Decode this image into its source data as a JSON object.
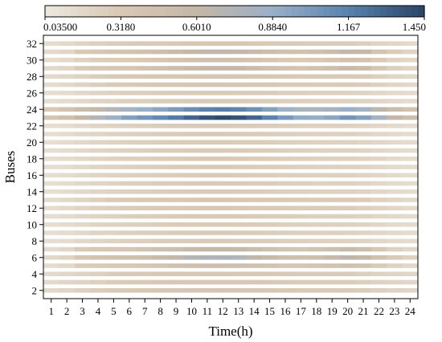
{
  "chart_data": {
    "type": "heatmap",
    "xlabel": "Time(h)",
    "ylabel": "Buses",
    "x": [
      1,
      2,
      3,
      4,
      5,
      6,
      7,
      8,
      9,
      10,
      11,
      12,
      13,
      14,
      15,
      16,
      17,
      18,
      19,
      20,
      21,
      22,
      23,
      24
    ],
    "y_ticks": [
      2,
      4,
      6,
      8,
      10,
      12,
      14,
      16,
      18,
      20,
      22,
      24,
      26,
      28,
      30,
      32
    ],
    "y_range": [
      1,
      33
    ],
    "rows": [
      {
        "bus": 2,
        "values": [
          0.17,
          0.2,
          0.24,
          0.27,
          0.3,
          0.32,
          0.33,
          0.34,
          0.35,
          0.36,
          0.36,
          0.37,
          0.36,
          0.35,
          0.34,
          0.32,
          0.31,
          0.3,
          0.3,
          0.3,
          0.28,
          0.25,
          0.22,
          0.2
        ]
      },
      {
        "bus": 3,
        "values": [
          0.16,
          0.19,
          0.22,
          0.25,
          0.28,
          0.3,
          0.31,
          0.32,
          0.33,
          0.34,
          0.34,
          0.34,
          0.34,
          0.33,
          0.32,
          0.3,
          0.29,
          0.28,
          0.28,
          0.28,
          0.26,
          0.23,
          0.21,
          0.19
        ]
      },
      {
        "bus": 4,
        "values": [
          0.16,
          0.19,
          0.22,
          0.25,
          0.28,
          0.3,
          0.31,
          0.32,
          0.33,
          0.34,
          0.35,
          0.35,
          0.34,
          0.33,
          0.32,
          0.3,
          0.29,
          0.28,
          0.28,
          0.28,
          0.26,
          0.23,
          0.21,
          0.19
        ]
      },
      {
        "bus": 5,
        "values": [
          0.14,
          0.18,
          0.28,
          0.3,
          0.32,
          0.33,
          0.35,
          0.38,
          0.42,
          0.46,
          0.48,
          0.48,
          0.46,
          0.42,
          0.4,
          0.36,
          0.36,
          0.38,
          0.4,
          0.44,
          0.4,
          0.3,
          0.22,
          0.18
        ]
      },
      {
        "bus": 6,
        "values": [
          0.18,
          0.22,
          0.36,
          0.4,
          0.42,
          0.44,
          0.48,
          0.55,
          0.62,
          0.7,
          0.74,
          0.75,
          0.72,
          0.64,
          0.56,
          0.48,
          0.46,
          0.5,
          0.56,
          0.66,
          0.6,
          0.42,
          0.3,
          0.24
        ]
      },
      {
        "bus": 7,
        "values": [
          0.15,
          0.19,
          0.3,
          0.33,
          0.35,
          0.37,
          0.4,
          0.45,
          0.5,
          0.56,
          0.6,
          0.6,
          0.58,
          0.52,
          0.46,
          0.4,
          0.38,
          0.42,
          0.46,
          0.54,
          0.48,
          0.34,
          0.24,
          0.19
        ]
      },
      {
        "bus": 8,
        "values": [
          0.12,
          0.14,
          0.18,
          0.21,
          0.23,
          0.25,
          0.26,
          0.27,
          0.28,
          0.29,
          0.3,
          0.3,
          0.29,
          0.28,
          0.27,
          0.26,
          0.25,
          0.24,
          0.24,
          0.24,
          0.22,
          0.19,
          0.16,
          0.14
        ]
      },
      {
        "bus": 9,
        "values": [
          0.12,
          0.14,
          0.18,
          0.21,
          0.23,
          0.25,
          0.26,
          0.27,
          0.28,
          0.29,
          0.3,
          0.3,
          0.29,
          0.28,
          0.27,
          0.26,
          0.25,
          0.24,
          0.24,
          0.24,
          0.22,
          0.19,
          0.16,
          0.14
        ]
      },
      {
        "bus": 10,
        "values": [
          0.12,
          0.14,
          0.18,
          0.21,
          0.23,
          0.25,
          0.26,
          0.27,
          0.28,
          0.29,
          0.3,
          0.3,
          0.29,
          0.28,
          0.27,
          0.26,
          0.25,
          0.24,
          0.24,
          0.24,
          0.22,
          0.19,
          0.16,
          0.14
        ]
      },
      {
        "bus": 11,
        "values": [
          0.13,
          0.15,
          0.19,
          0.22,
          0.24,
          0.26,
          0.27,
          0.28,
          0.29,
          0.3,
          0.31,
          0.31,
          0.3,
          0.29,
          0.28,
          0.27,
          0.26,
          0.25,
          0.25,
          0.25,
          0.23,
          0.2,
          0.17,
          0.15
        ]
      },
      {
        "bus": 12,
        "values": [
          0.14,
          0.17,
          0.21,
          0.24,
          0.26,
          0.28,
          0.29,
          0.3,
          0.31,
          0.32,
          0.33,
          0.33,
          0.32,
          0.31,
          0.3,
          0.29,
          0.28,
          0.27,
          0.27,
          0.27,
          0.25,
          0.22,
          0.19,
          0.16
        ]
      },
      {
        "bus": 13,
        "values": [
          0.14,
          0.17,
          0.22,
          0.26,
          0.29,
          0.31,
          0.32,
          0.33,
          0.34,
          0.35,
          0.36,
          0.36,
          0.35,
          0.34,
          0.33,
          0.31,
          0.3,
          0.29,
          0.29,
          0.3,
          0.28,
          0.24,
          0.2,
          0.17
        ]
      },
      {
        "bus": 14,
        "values": [
          0.12,
          0.14,
          0.18,
          0.21,
          0.23,
          0.25,
          0.26,
          0.27,
          0.28,
          0.29,
          0.3,
          0.3,
          0.29,
          0.28,
          0.27,
          0.26,
          0.25,
          0.24,
          0.24,
          0.24,
          0.22,
          0.19,
          0.16,
          0.14
        ]
      },
      {
        "bus": 15,
        "values": [
          0.12,
          0.14,
          0.18,
          0.21,
          0.23,
          0.25,
          0.26,
          0.27,
          0.28,
          0.29,
          0.3,
          0.3,
          0.29,
          0.28,
          0.27,
          0.26,
          0.25,
          0.24,
          0.24,
          0.24,
          0.22,
          0.19,
          0.16,
          0.14
        ]
      },
      {
        "bus": 16,
        "values": [
          0.12,
          0.14,
          0.18,
          0.21,
          0.23,
          0.25,
          0.26,
          0.27,
          0.28,
          0.29,
          0.3,
          0.3,
          0.29,
          0.28,
          0.27,
          0.26,
          0.25,
          0.24,
          0.24,
          0.24,
          0.22,
          0.19,
          0.16,
          0.14
        ]
      },
      {
        "bus": 17,
        "values": [
          0.12,
          0.14,
          0.18,
          0.21,
          0.23,
          0.25,
          0.26,
          0.27,
          0.28,
          0.29,
          0.3,
          0.3,
          0.29,
          0.28,
          0.27,
          0.26,
          0.25,
          0.24,
          0.24,
          0.24,
          0.22,
          0.19,
          0.16,
          0.14
        ]
      },
      {
        "bus": 18,
        "values": [
          0.12,
          0.14,
          0.18,
          0.21,
          0.23,
          0.25,
          0.26,
          0.27,
          0.28,
          0.29,
          0.3,
          0.3,
          0.29,
          0.28,
          0.27,
          0.26,
          0.25,
          0.24,
          0.24,
          0.24,
          0.22,
          0.19,
          0.16,
          0.14
        ]
      },
      {
        "bus": 19,
        "values": [
          0.12,
          0.14,
          0.18,
          0.21,
          0.23,
          0.25,
          0.26,
          0.27,
          0.28,
          0.29,
          0.3,
          0.3,
          0.29,
          0.28,
          0.27,
          0.26,
          0.25,
          0.24,
          0.24,
          0.24,
          0.22,
          0.19,
          0.16,
          0.14
        ]
      },
      {
        "bus": 20,
        "values": [
          0.12,
          0.14,
          0.18,
          0.21,
          0.23,
          0.25,
          0.26,
          0.27,
          0.28,
          0.29,
          0.3,
          0.3,
          0.29,
          0.28,
          0.27,
          0.26,
          0.25,
          0.24,
          0.24,
          0.24,
          0.22,
          0.19,
          0.16,
          0.14
        ]
      },
      {
        "bus": 21,
        "values": [
          0.12,
          0.14,
          0.18,
          0.21,
          0.23,
          0.25,
          0.26,
          0.27,
          0.28,
          0.29,
          0.3,
          0.3,
          0.29,
          0.28,
          0.27,
          0.26,
          0.25,
          0.24,
          0.24,
          0.24,
          0.22,
          0.19,
          0.16,
          0.14
        ]
      },
      {
        "bus": 22,
        "values": [
          0.12,
          0.14,
          0.18,
          0.21,
          0.23,
          0.25,
          0.26,
          0.27,
          0.28,
          0.29,
          0.3,
          0.3,
          0.29,
          0.28,
          0.27,
          0.26,
          0.25,
          0.24,
          0.24,
          0.24,
          0.22,
          0.19,
          0.16,
          0.14
        ]
      },
      {
        "bus": 23,
        "values": [
          0.38,
          0.45,
          0.6,
          0.72,
          0.85,
          0.98,
          1.05,
          1.12,
          1.2,
          1.3,
          1.38,
          1.42,
          1.38,
          1.3,
          1.16,
          1.02,
          0.92,
          0.9,
          0.95,
          1.05,
          0.98,
          0.8,
          0.62,
          0.48
        ]
      },
      {
        "bus": 24,
        "values": [
          0.32,
          0.4,
          0.52,
          0.62,
          0.72,
          0.82,
          0.88,
          0.95,
          1.02,
          1.1,
          1.16,
          1.18,
          1.15,
          1.08,
          0.98,
          0.86,
          0.78,
          0.76,
          0.8,
          0.88,
          0.82,
          0.66,
          0.52,
          0.4
        ]
      },
      {
        "bus": 25,
        "values": [
          0.12,
          0.14,
          0.18,
          0.21,
          0.23,
          0.25,
          0.26,
          0.27,
          0.28,
          0.29,
          0.3,
          0.3,
          0.29,
          0.28,
          0.27,
          0.26,
          0.25,
          0.24,
          0.24,
          0.24,
          0.22,
          0.19,
          0.16,
          0.14
        ]
      },
      {
        "bus": 26,
        "values": [
          0.12,
          0.14,
          0.18,
          0.21,
          0.23,
          0.25,
          0.26,
          0.27,
          0.28,
          0.29,
          0.3,
          0.3,
          0.29,
          0.28,
          0.27,
          0.26,
          0.25,
          0.24,
          0.24,
          0.24,
          0.22,
          0.19,
          0.16,
          0.14
        ]
      },
      {
        "bus": 27,
        "values": [
          0.14,
          0.17,
          0.22,
          0.26,
          0.29,
          0.31,
          0.32,
          0.33,
          0.34,
          0.35,
          0.36,
          0.36,
          0.35,
          0.34,
          0.33,
          0.31,
          0.3,
          0.29,
          0.29,
          0.3,
          0.28,
          0.24,
          0.2,
          0.17
        ]
      },
      {
        "bus": 28,
        "values": [
          0.16,
          0.19,
          0.23,
          0.27,
          0.3,
          0.32,
          0.33,
          0.34,
          0.35,
          0.36,
          0.37,
          0.37,
          0.36,
          0.35,
          0.34,
          0.32,
          0.31,
          0.3,
          0.3,
          0.31,
          0.29,
          0.25,
          0.21,
          0.18
        ]
      },
      {
        "bus": 29,
        "values": [
          0.17,
          0.2,
          0.3,
          0.33,
          0.35,
          0.37,
          0.4,
          0.44,
          0.5,
          0.56,
          0.6,
          0.6,
          0.58,
          0.52,
          0.46,
          0.4,
          0.38,
          0.42,
          0.48,
          0.56,
          0.52,
          0.36,
          0.26,
          0.21
        ]
      },
      {
        "bus": 30,
        "values": [
          0.14,
          0.17,
          0.24,
          0.27,
          0.29,
          0.31,
          0.33,
          0.36,
          0.4,
          0.44,
          0.46,
          0.46,
          0.44,
          0.4,
          0.36,
          0.32,
          0.31,
          0.34,
          0.38,
          0.44,
          0.4,
          0.3,
          0.22,
          0.18
        ]
      },
      {
        "bus": 31,
        "values": [
          0.16,
          0.2,
          0.32,
          0.35,
          0.38,
          0.4,
          0.44,
          0.48,
          0.54,
          0.6,
          0.64,
          0.64,
          0.62,
          0.56,
          0.5,
          0.44,
          0.42,
          0.46,
          0.52,
          0.62,
          0.58,
          0.4,
          0.28,
          0.22
        ]
      },
      {
        "bus": 32,
        "values": [
          0.14,
          0.17,
          0.22,
          0.25,
          0.27,
          0.29,
          0.3,
          0.31,
          0.32,
          0.33,
          0.34,
          0.34,
          0.33,
          0.32,
          0.31,
          0.3,
          0.29,
          0.28,
          0.28,
          0.28,
          0.26,
          0.22,
          0.19,
          0.16
        ]
      }
    ],
    "colorbar": {
      "min": 0.035,
      "max": 1.45,
      "tick_values": [
        0.035,
        0.318,
        0.601,
        0.884,
        1.167,
        1.45
      ],
      "tick_labels": [
        "0.03500",
        "0.3180",
        "0.6010",
        "0.8840",
        "1.167",
        "1.450"
      ],
      "placement": "top",
      "colors": [
        "#ede8df",
        "#d8c8b4",
        "#c5b7a8",
        "#9ab0c8",
        "#5a82ad",
        "#2b4465"
      ]
    }
  }
}
